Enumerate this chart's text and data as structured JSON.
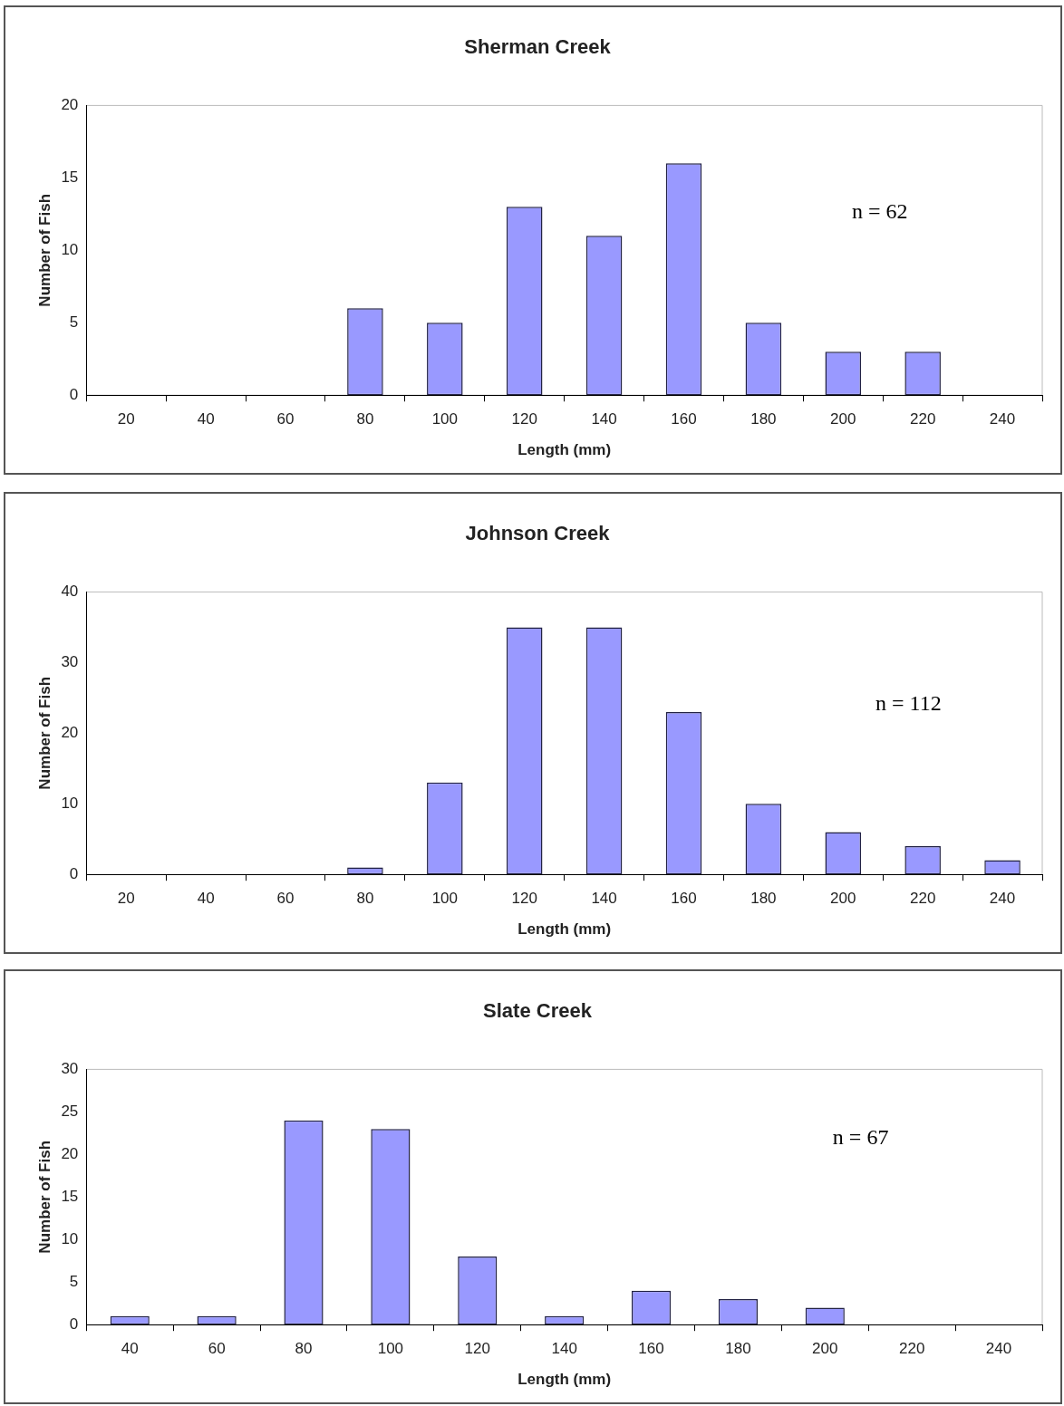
{
  "chart_data": [
    {
      "type": "bar",
      "title": "Sherman Creek",
      "xlabel": "Length (mm)",
      "ylabel": "Number of Fish",
      "categories": [
        "20",
        "40",
        "60",
        "80",
        "100",
        "120",
        "140",
        "160",
        "180",
        "200",
        "220",
        "240"
      ],
      "values": [
        0,
        0,
        0,
        6,
        5,
        13,
        11,
        16,
        5,
        3,
        3,
        0
      ],
      "color": "#9999ff",
      "ylim": [
        0,
        20
      ],
      "yticks": [
        0,
        5,
        10,
        15,
        20
      ],
      "annotations": [
        "n = 62"
      ]
    },
    {
      "type": "bar",
      "title": "Johnson Creek",
      "xlabel": "Length (mm)",
      "ylabel": "Number of Fish",
      "categories": [
        "20",
        "40",
        "60",
        "80",
        "100",
        "120",
        "140",
        "160",
        "180",
        "200",
        "220",
        "240"
      ],
      "values": [
        0,
        0,
        0,
        1,
        13,
        35,
        35,
        23,
        10,
        6,
        4,
        2
      ],
      "color": "#9999ff",
      "ylim": [
        0,
        40
      ],
      "yticks": [
        0,
        10,
        20,
        30,
        40
      ],
      "annotations": [
        "n = 112"
      ]
    },
    {
      "type": "bar",
      "title": "Slate Creek",
      "xlabel": "Length (mm)",
      "ylabel": "Number of Fish",
      "categories": [
        "40",
        "60",
        "80",
        "100",
        "120",
        "140",
        "160",
        "180",
        "200",
        "220",
        "240"
      ],
      "values": [
        1,
        1,
        24,
        23,
        8,
        1,
        4,
        3,
        2,
        0,
        0
      ],
      "color": "#9999ff",
      "ylim": [
        0,
        30
      ],
      "yticks": [
        0,
        5,
        10,
        15,
        20,
        25,
        30
      ],
      "annotations": [
        "n = 67"
      ]
    }
  ]
}
